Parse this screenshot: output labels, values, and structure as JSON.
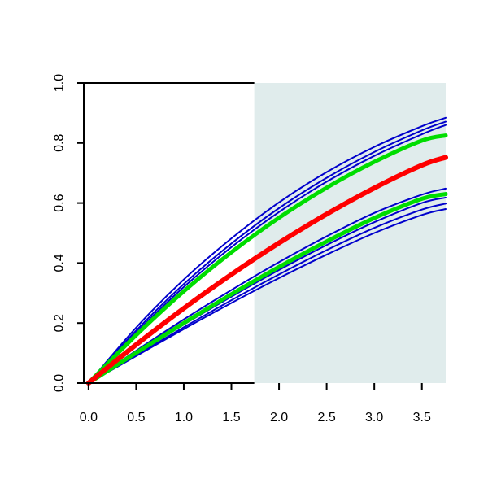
{
  "chart_data": {
    "type": "line",
    "title": "",
    "xlabel": "",
    "ylabel": "",
    "xlim": [
      -0.05,
      3.75
    ],
    "ylim": [
      0.0,
      1.0
    ],
    "grid": false,
    "shaded_region": {
      "x_start": 1.74,
      "x_end": 3.75,
      "color": "#e0ecec"
    },
    "x_ticks": [
      "0.0",
      "0.5",
      "1.0",
      "1.5",
      "2.0",
      "2.5",
      "3.0",
      "3.5"
    ],
    "x_tick_values": [
      0.0,
      0.5,
      1.0,
      1.5,
      2.0,
      2.5,
      3.0,
      3.5
    ],
    "y_ticks": [
      "0.0",
      "0.2",
      "0.4",
      "0.6",
      "0.8",
      "1.0"
    ],
    "y_tick_values": [
      0.0,
      0.2,
      0.4,
      0.6,
      0.8,
      1.0
    ],
    "colors": {
      "band": "#0000cc",
      "bound": "#00dd00",
      "mean": "#ff0000"
    },
    "x": [
      0.0,
      0.5,
      1.0,
      1.5,
      2.0,
      2.5,
      3.0,
      3.5,
      3.75
    ],
    "series": [
      {
        "role": "band",
        "values": [
          0.0,
          0.185,
          0.345,
          0.482,
          0.602,
          0.703,
          0.787,
          0.856,
          0.884
        ]
      },
      {
        "role": "band",
        "values": [
          0.0,
          0.175,
          0.33,
          0.465,
          0.583,
          0.684,
          0.77,
          0.842,
          0.871
        ]
      },
      {
        "role": "band",
        "values": [
          0.0,
          0.168,
          0.32,
          0.453,
          0.57,
          0.671,
          0.757,
          0.829,
          0.86
        ]
      },
      {
        "role": "band",
        "values": [
          0.0,
          0.108,
          0.212,
          0.31,
          0.403,
          0.489,
          0.567,
          0.628,
          0.648
        ]
      },
      {
        "role": "band",
        "values": [
          0.0,
          0.098,
          0.195,
          0.288,
          0.377,
          0.46,
          0.536,
          0.6,
          0.618
        ]
      },
      {
        "role": "band",
        "values": [
          0.0,
          0.093,
          0.186,
          0.276,
          0.362,
          0.443,
          0.517,
          0.578,
          0.598
        ]
      },
      {
        "role": "band",
        "values": [
          0.0,
          0.09,
          0.18,
          0.267,
          0.35,
          0.428,
          0.5,
          0.56,
          0.58
        ]
      },
      {
        "role": "bound",
        "values": [
          0.0,
          0.16,
          0.306,
          0.436,
          0.551,
          0.651,
          0.737,
          0.808,
          0.825
        ]
      },
      {
        "role": "bound",
        "values": [
          0.0,
          0.101,
          0.2,
          0.296,
          0.387,
          0.472,
          0.55,
          0.614,
          0.63
        ]
      },
      {
        "role": "mean",
        "values": [
          0.0,
          0.128,
          0.249,
          0.362,
          0.467,
          0.563,
          0.65,
          0.726,
          0.752
        ]
      }
    ]
  }
}
